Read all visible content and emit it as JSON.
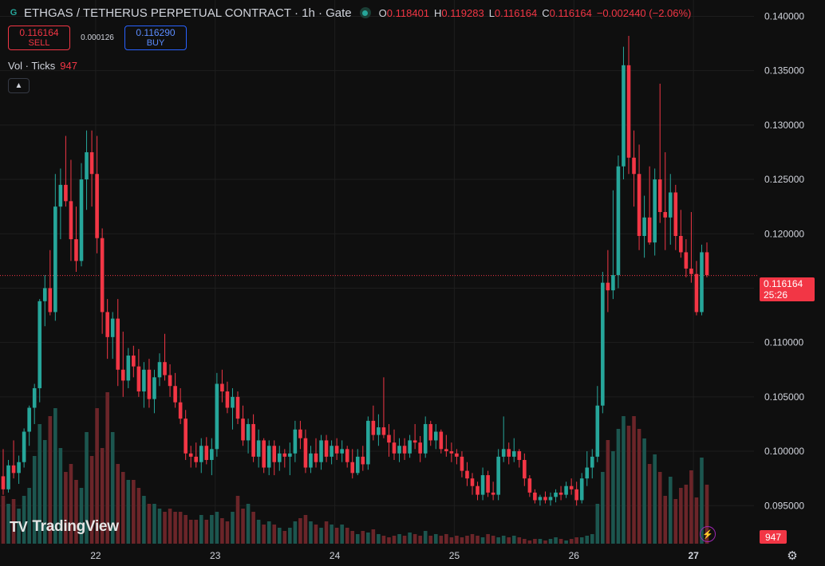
{
  "header": {
    "symbol_logo": "G",
    "title": "ETHGAS / TETHERUS PERPETUAL CONTRACT · 1h · Gate",
    "ohlc": [
      {
        "k": "O",
        "v": "0.118401"
      },
      {
        "k": "H",
        "v": "0.119283"
      },
      {
        "k": "L",
        "v": "0.116164"
      },
      {
        "k": "C",
        "v": "0.116164"
      },
      {
        "k": "",
        "v": "−0.002440 (−2.06%)"
      }
    ],
    "status_color": "#26a69a"
  },
  "trade": {
    "sell_price": "0.116164",
    "sell_label": "SELL",
    "spread": "0.000126",
    "buy_price": "0.116290",
    "buy_label": "BUY"
  },
  "volume_pane": {
    "label": "Vol · Ticks",
    "value": "947"
  },
  "collapse_icon": "chevron-up-icon",
  "branding": {
    "name": "TradingView",
    "mark": "TV"
  },
  "last_price": {
    "value": "0.116164",
    "countdown": "25:26"
  },
  "last_volume": "947",
  "colors": {
    "up": "#26a69a",
    "down": "#f23645",
    "background": "#0f0f0f",
    "grid": "#1e1e1e"
  },
  "chart_data": {
    "type": "candlestick",
    "title": "ETHGAS / TETHERUS PERPETUAL CONTRACT · 1h · Gate",
    "interval": "1h",
    "ylim": [
      0.0915,
      0.1415
    ],
    "y_ticks": [
      "0.095000",
      "0.100000",
      "0.105000",
      "0.110000",
      "0.115000",
      "0.120000",
      "0.125000",
      "0.130000",
      "0.135000",
      "0.140000"
    ],
    "x_range_days": [
      21.2,
      28.1
    ],
    "x_ticks": [
      {
        "label": "22",
        "x": 22
      },
      {
        "label": "23",
        "x": 23
      },
      {
        "label": "24",
        "x": 24
      },
      {
        "label": "25",
        "x": 25
      },
      {
        "label": "26",
        "x": 26
      },
      {
        "label": "27",
        "x": 27,
        "bold": true
      }
    ],
    "last_price": 0.116164,
    "candles": [
      [
        0.0977,
        0.1002,
        0.096,
        0.0965
      ],
      [
        0.0965,
        0.0992,
        0.0962,
        0.0987
      ],
      [
        0.0987,
        0.101,
        0.0975,
        0.098
      ],
      [
        0.098,
        0.0996,
        0.097,
        0.099
      ],
      [
        0.099,
        0.1021,
        0.0985,
        0.1018
      ],
      [
        0.1018,
        0.1042,
        0.1005,
        0.104
      ],
      [
        0.104,
        0.1062,
        0.1025,
        0.1058
      ],
      [
        0.1058,
        0.114,
        0.1045,
        0.1138
      ],
      [
        0.1138,
        0.1162,
        0.1115,
        0.115
      ],
      [
        0.115,
        0.1185,
        0.1125,
        0.1128
      ],
      [
        0.1128,
        0.1255,
        0.112,
        0.1225
      ],
      [
        0.1225,
        0.126,
        0.1195,
        0.1245
      ],
      [
        0.1245,
        0.129,
        0.1225,
        0.123
      ],
      [
        0.123,
        0.1268,
        0.1175,
        0.1195
      ],
      [
        0.1195,
        0.1225,
        0.1165,
        0.1175
      ],
      [
        0.1175,
        0.1265,
        0.117,
        0.125
      ],
      [
        0.125,
        0.1295,
        0.1222,
        0.1275
      ],
      [
        0.1275,
        0.1295,
        0.1225,
        0.1255
      ],
      [
        0.1255,
        0.129,
        0.1182,
        0.1196
      ],
      [
        0.1196,
        0.1205,
        0.1108,
        0.1128
      ],
      [
        0.1128,
        0.114,
        0.1085,
        0.1105
      ],
      [
        0.1105,
        0.1128,
        0.1085,
        0.1122
      ],
      [
        0.1122,
        0.114,
        0.106,
        0.1075
      ],
      [
        0.1075,
        0.111,
        0.105,
        0.1065
      ],
      [
        0.1065,
        0.1095,
        0.1058,
        0.1088
      ],
      [
        0.1088,
        0.1097,
        0.1068,
        0.1078
      ],
      [
        0.1078,
        0.1094,
        0.105,
        0.1055
      ],
      [
        0.1055,
        0.1082,
        0.104,
        0.1075
      ],
      [
        0.1075,
        0.1085,
        0.104,
        0.1048
      ],
      [
        0.1048,
        0.1075,
        0.1035,
        0.1068
      ],
      [
        0.1068,
        0.109,
        0.106,
        0.1082
      ],
      [
        0.1082,
        0.1108,
        0.1065,
        0.107
      ],
      [
        0.107,
        0.108,
        0.105,
        0.106
      ],
      [
        0.106,
        0.1072,
        0.104,
        0.1045
      ],
      [
        0.1045,
        0.1058,
        0.1025,
        0.103
      ],
      [
        0.103,
        0.1038,
        0.0992,
        0.0998
      ],
      [
        0.0998,
        0.1005,
        0.0985,
        0.0995
      ],
      [
        0.0995,
        0.1008,
        0.0985,
        0.099
      ],
      [
        0.099,
        0.1012,
        0.098,
        0.1005
      ],
      [
        0.1005,
        0.1013,
        0.0988,
        0.0992
      ],
      [
        0.0992,
        0.1012,
        0.0978,
        0.1002
      ],
      [
        0.1002,
        0.1072,
        0.0995,
        0.1062
      ],
      [
        0.1062,
        0.1075,
        0.1045,
        0.1055
      ],
      [
        0.1055,
        0.1064,
        0.1035,
        0.104
      ],
      [
        0.104,
        0.1058,
        0.102,
        0.105
      ],
      [
        0.105,
        0.1055,
        0.1025,
        0.103
      ],
      [
        0.103,
        0.1042,
        0.1005,
        0.101
      ],
      [
        0.101,
        0.103,
        0.0998,
        0.1025
      ],
      [
        0.1025,
        0.1034,
        0.099,
        0.0995
      ],
      [
        0.0995,
        0.102,
        0.0985,
        0.101
      ],
      [
        0.101,
        0.1012,
        0.098,
        0.0985
      ],
      [
        0.0985,
        0.101,
        0.0978,
        0.1005
      ],
      [
        0.1005,
        0.101,
        0.0978,
        0.099
      ],
      [
        0.099,
        0.1005,
        0.0982,
        0.0998
      ],
      [
        0.0998,
        0.1002,
        0.0985,
        0.0995
      ],
      [
        0.0995,
        0.1008,
        0.0978,
        0.0998
      ],
      [
        0.0998,
        0.1028,
        0.099,
        0.102
      ],
      [
        0.102,
        0.1028,
        0.1002,
        0.1012
      ],
      [
        0.1012,
        0.102,
        0.098,
        0.0985
      ],
      [
        0.0985,
        0.1005,
        0.098,
        0.0998
      ],
      [
        0.0998,
        0.1012,
        0.0985,
        0.099
      ],
      [
        0.099,
        0.1015,
        0.0983,
        0.101
      ],
      [
        0.101,
        0.1015,
        0.099,
        0.0995
      ],
      [
        0.0995,
        0.101,
        0.0988,
        0.1005
      ],
      [
        0.1005,
        0.1012,
        0.0992,
        0.0998
      ],
      [
        0.0998,
        0.101,
        0.099,
        0.1002
      ],
      [
        0.1002,
        0.1005,
        0.0985,
        0.099
      ],
      [
        0.099,
        0.1002,
        0.0975,
        0.098
      ],
      [
        0.098,
        0.1002,
        0.0978,
        0.0995
      ],
      [
        0.0995,
        0.1005,
        0.0982,
        0.0988
      ],
      [
        0.0988,
        0.1032,
        0.0983,
        0.1028
      ],
      [
        0.1028,
        0.1042,
        0.101,
        0.1015
      ],
      [
        0.1015,
        0.1034,
        0.1005,
        0.1022
      ],
      [
        0.1022,
        0.1068,
        0.1012,
        0.1015
      ],
      [
        0.1015,
        0.1025,
        0.0995,
        0.1008
      ],
      [
        0.1008,
        0.102,
        0.0992,
        0.0998
      ],
      [
        0.0998,
        0.1012,
        0.099,
        0.1005
      ],
      [
        0.1005,
        0.1012,
        0.0992,
        0.0998
      ],
      [
        0.0998,
        0.1015,
        0.0994,
        0.101
      ],
      [
        0.101,
        0.1025,
        0.1002,
        0.1008
      ],
      [
        0.1008,
        0.1014,
        0.099,
        0.0998
      ],
      [
        0.0998,
        0.1032,
        0.0994,
        0.1025
      ],
      [
        0.1025,
        0.1028,
        0.1005,
        0.101
      ],
      [
        0.101,
        0.1025,
        0.1002,
        0.1018
      ],
      [
        0.1018,
        0.102,
        0.0998,
        0.1002
      ],
      [
        0.1002,
        0.1015,
        0.0995,
        0.1
      ],
      [
        0.1,
        0.1008,
        0.099,
        0.0998
      ],
      [
        0.0998,
        0.1002,
        0.0988,
        0.0995
      ],
      [
        0.0995,
        0.1,
        0.0976,
        0.0982
      ],
      [
        0.0982,
        0.099,
        0.0968,
        0.0975
      ],
      [
        0.0975,
        0.098,
        0.096,
        0.0968
      ],
      [
        0.0968,
        0.0972,
        0.0955,
        0.096
      ],
      [
        0.096,
        0.0985,
        0.0955,
        0.0978
      ],
      [
        0.0978,
        0.0982,
        0.0958,
        0.0962
      ],
      [
        0.0962,
        0.0972,
        0.0955,
        0.096
      ],
      [
        0.096,
        0.1002,
        0.0955,
        0.0995
      ],
      [
        0.0995,
        0.1032,
        0.099,
        0.1002
      ],
      [
        0.1002,
        0.1008,
        0.0988,
        0.0995
      ],
      [
        0.0995,
        0.1012,
        0.099,
        0.1
      ],
      [
        0.1,
        0.1002,
        0.0985,
        0.0992
      ],
      [
        0.0992,
        0.0998,
        0.0968,
        0.0975
      ],
      [
        0.0975,
        0.0978,
        0.0958,
        0.0962
      ],
      [
        0.0962,
        0.0965,
        0.0952,
        0.0955
      ],
      [
        0.0955,
        0.096,
        0.095,
        0.0958
      ],
      [
        0.0958,
        0.0963,
        0.0952,
        0.0955
      ],
      [
        0.0955,
        0.0962,
        0.095,
        0.0958
      ],
      [
        0.0958,
        0.0965,
        0.0953,
        0.0962
      ],
      [
        0.0962,
        0.0968,
        0.0955,
        0.096
      ],
      [
        0.096,
        0.0972,
        0.0957,
        0.0968
      ],
      [
        0.0968,
        0.0975,
        0.096,
        0.0965
      ],
      [
        0.0965,
        0.0972,
        0.095,
        0.0955
      ],
      [
        0.0955,
        0.098,
        0.0952,
        0.0975
      ],
      [
        0.0975,
        0.1,
        0.0968,
        0.0985
      ],
      [
        0.0985,
        0.1002,
        0.0975,
        0.0995
      ],
      [
        0.0995,
        0.106,
        0.099,
        0.1042
      ],
      [
        0.1042,
        0.1165,
        0.1035,
        0.1155
      ],
      [
        0.1155,
        0.1185,
        0.1128,
        0.1148
      ],
      [
        0.1148,
        0.124,
        0.114,
        0.1162
      ],
      [
        0.1162,
        0.1272,
        0.115,
        0.1262
      ],
      [
        0.1262,
        0.1372,
        0.125,
        0.1355
      ],
      [
        0.1355,
        0.1382,
        0.1255,
        0.127
      ],
      [
        0.127,
        0.1295,
        0.1225,
        0.1255
      ],
      [
        0.1255,
        0.1282,
        0.1185,
        0.1198
      ],
      [
        0.1198,
        0.1235,
        0.1178,
        0.1215
      ],
      [
        0.1215,
        0.1262,
        0.119,
        0.1192
      ],
      [
        0.1192,
        0.126,
        0.118,
        0.125
      ],
      [
        0.125,
        0.1338,
        0.121,
        0.122
      ],
      [
        0.122,
        0.1275,
        0.1185,
        0.1215
      ],
      [
        0.1215,
        0.1255,
        0.119,
        0.1238
      ],
      [
        0.1238,
        0.1245,
        0.1185,
        0.1198
      ],
      [
        0.1198,
        0.1222,
        0.1178,
        0.1183
      ],
      [
        0.1183,
        0.1195,
        0.116,
        0.1168
      ],
      [
        0.1168,
        0.122,
        0.1155,
        0.1163
      ],
      [
        0.1163,
        0.1175,
        0.1125,
        0.1128
      ],
      [
        0.1128,
        0.119,
        0.1125,
        0.1183
      ],
      [
        0.1183,
        0.1192,
        0.116,
        0.1162
      ]
    ],
    "volume": [
      0.3,
      0.25,
      0.28,
      0.22,
      0.3,
      0.35,
      0.55,
      0.75,
      0.65,
      0.8,
      0.85,
      0.6,
      0.45,
      0.5,
      0.4,
      0.35,
      0.7,
      0.55,
      0.85,
      0.6,
      0.95,
      0.7,
      0.5,
      0.45,
      0.4,
      0.4,
      0.35,
      0.3,
      0.25,
      0.25,
      0.22,
      0.2,
      0.22,
      0.2,
      0.2,
      0.18,
      0.15,
      0.15,
      0.18,
      0.15,
      0.18,
      0.2,
      0.16,
      0.14,
      0.2,
      0.3,
      0.22,
      0.25,
      0.2,
      0.15,
      0.12,
      0.14,
      0.12,
      0.1,
      0.08,
      0.1,
      0.14,
      0.16,
      0.18,
      0.14,
      0.12,
      0.1,
      0.14,
      0.12,
      0.1,
      0.12,
      0.1,
      0.08,
      0.06,
      0.08,
      0.07,
      0.09,
      0.06,
      0.05,
      0.04,
      0.05,
      0.06,
      0.05,
      0.07,
      0.06,
      0.05,
      0.08,
      0.05,
      0.06,
      0.05,
      0.06,
      0.04,
      0.05,
      0.04,
      0.05,
      0.06,
      0.05,
      0.04,
      0.06,
      0.05,
      0.04,
      0.05,
      0.04,
      0.05,
      0.04,
      0.03,
      0.02,
      0.03,
      0.03,
      0.02,
      0.03,
      0.04,
      0.03,
      0.02,
      0.03,
      0.04,
      0.04,
      0.05,
      0.06,
      0.25,
      0.45,
      0.65,
      0.58,
      0.72,
      0.8,
      0.74,
      0.8,
      0.72,
      0.66,
      0.5,
      0.56,
      0.45,
      0.3,
      0.42,
      0.28,
      0.35,
      0.37,
      0.46,
      0.29,
      0.54,
      0.37,
      0.3
    ]
  }
}
